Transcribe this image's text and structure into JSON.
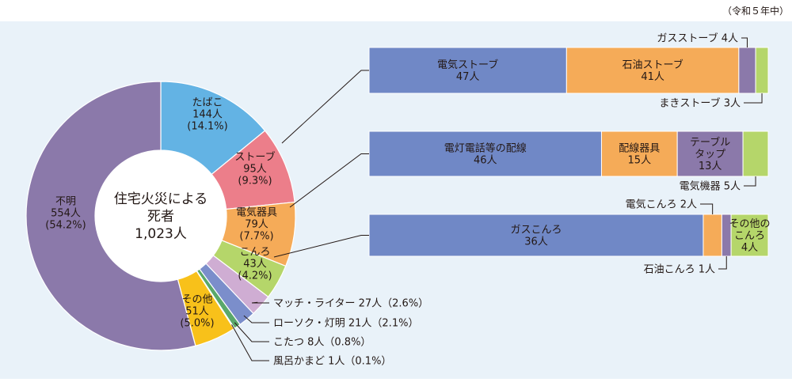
{
  "note": "（令和５年中）",
  "center_label": [
    "住宅火災による",
    "死者",
    "1,023人"
  ],
  "colors": {
    "panel": "#e9f2f9",
    "tobacco": "#63b3e4",
    "stove": "#ec7e8a",
    "electric": "#f5ab58",
    "stove_burner": "#b5d66a",
    "match": "#cfadd3",
    "candle": "#7b8ecb",
    "kotatsu": "#5aa86a",
    "bath": "#8a7dba",
    "other": "#f8c11a",
    "unknown": "#8b79aa",
    "bar_blue": "#7088c6",
    "bar_orange": "#f5ab58",
    "bar_purple": "#8b79aa",
    "bar_green": "#b5d66a",
    "line": "#231815"
  },
  "chart_data": [
    {
      "type": "pie",
      "title": "住宅火災による死者 1,023人",
      "slices": [
        {
          "key": "tobacco",
          "lines": [
            "たばこ",
            "144人",
            "(14.1%)"
          ],
          "value": 144,
          "percent": 14.1
        },
        {
          "key": "stove",
          "lines": [
            "ストーブ",
            "95人",
            "(9.3%)"
          ],
          "value": 95,
          "percent": 9.3
        },
        {
          "key": "electric",
          "lines": [
            "電気器具",
            "79人",
            "(7.7%)"
          ],
          "value": 79,
          "percent": 7.7
        },
        {
          "key": "stove_burner",
          "lines": [
            "こんろ",
            "43人",
            "(4.2%)"
          ],
          "value": 43,
          "percent": 4.2
        },
        {
          "key": "match",
          "label": "マッチ・ライター 27人（2.6%）",
          "value": 27,
          "percent": 2.6
        },
        {
          "key": "candle",
          "label": "ローソク・灯明 21人（2.1%）",
          "value": 21,
          "percent": 2.1
        },
        {
          "key": "kotatsu",
          "label": "こたつ 8人（0.8%）",
          "value": 8,
          "percent": 0.8
        },
        {
          "key": "bath",
          "label": "風呂かまど 1人（0.1%）",
          "value": 1,
          "percent": 0.1
        },
        {
          "key": "other",
          "lines": [
            "その他",
            "51人",
            "(5.0%)"
          ],
          "value": 51,
          "percent": 5.0
        },
        {
          "key": "unknown",
          "lines": [
            "不明",
            "554人",
            "(54.2%)"
          ],
          "value": 554,
          "percent": 54.2
        }
      ]
    },
    {
      "type": "bar",
      "orientation": "stacked-horizontal",
      "parent": "stove",
      "segments": [
        {
          "lines": [
            "電気ストーブ",
            "47人"
          ],
          "value": 47,
          "color": "bar_blue"
        },
        {
          "lines": [
            "石油ストーブ",
            "41人"
          ],
          "value": 41,
          "color": "bar_orange"
        },
        {
          "label": "ガスストーブ 4人",
          "value": 4,
          "color": "bar_purple"
        },
        {
          "label": "まきストーブ 3人",
          "value": 3,
          "color": "bar_green"
        }
      ]
    },
    {
      "type": "bar",
      "orientation": "stacked-horizontal",
      "parent": "electric",
      "segments": [
        {
          "lines": [
            "電灯電話等の配線",
            "46人"
          ],
          "value": 46,
          "color": "bar_blue"
        },
        {
          "lines": [
            "配線器具",
            "15人"
          ],
          "value": 15,
          "color": "bar_orange"
        },
        {
          "lines": [
            "テーブル",
            "タップ",
            "13人"
          ],
          "value": 13,
          "color": "bar_purple"
        },
        {
          "label": "電気機器 5人",
          "value": 5,
          "color": "bar_green"
        }
      ]
    },
    {
      "type": "bar",
      "orientation": "stacked-horizontal",
      "parent": "stove_burner",
      "segments": [
        {
          "lines": [
            "ガスこんろ",
            "36人"
          ],
          "value": 36,
          "color": "bar_blue"
        },
        {
          "label": "電気こんろ 2人",
          "value": 2,
          "color": "bar_orange"
        },
        {
          "label": "石油こんろ 1人",
          "value": 1,
          "color": "bar_purple"
        },
        {
          "lines": [
            "その他の",
            "こんろ",
            "4人"
          ],
          "value": 4,
          "color": "bar_green"
        }
      ]
    }
  ]
}
